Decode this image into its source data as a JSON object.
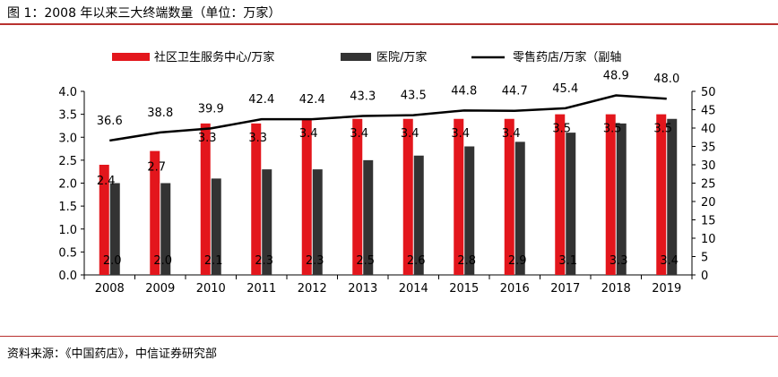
{
  "header": {
    "title": "图 1：2008 年以来三大终端数量（单位：万家）"
  },
  "footer": {
    "source": "资料来源：《中国药店》，中信证券研究部"
  },
  "colors": {
    "red_bar": "#e3161c",
    "dark_bar": "#333333",
    "line": "#000000",
    "rule": "#b8312f"
  },
  "chart_data": {
    "type": "bar",
    "categories": [
      "2008",
      "2009",
      "2010",
      "2011",
      "2012",
      "2013",
      "2014",
      "2015",
      "2016",
      "2017",
      "2018",
      "2019"
    ],
    "series": [
      {
        "name": "社区卫生服务中心/万家",
        "type": "bar",
        "axis": "left",
        "values": [
          2.4,
          2.7,
          3.3,
          3.3,
          3.4,
          3.4,
          3.4,
          3.4,
          3.4,
          3.5,
          3.5,
          3.5
        ],
        "labels": [
          "2.4",
          "2.7",
          "3.3",
          "3.3",
          "3.4",
          "3.4",
          "3.4",
          "3.4",
          "3.4",
          "3.5",
          "3.5",
          "3.5"
        ]
      },
      {
        "name": "医院/万家",
        "type": "bar",
        "axis": "left",
        "values": [
          2.0,
          2.0,
          2.1,
          2.3,
          2.3,
          2.5,
          2.6,
          2.8,
          2.9,
          3.1,
          3.3,
          3.4
        ],
        "labels": [
          "2.0",
          "2.0",
          "2.1",
          "2.3",
          "2.3",
          "2.5",
          "2.6",
          "2.8",
          "2.9",
          "3.1",
          "3.3",
          "3.4"
        ]
      },
      {
        "name": "零售药店/万家（副轴",
        "type": "line",
        "axis": "right",
        "values": [
          36.6,
          38.8,
          39.9,
          42.4,
          42.4,
          43.3,
          43.5,
          44.8,
          44.7,
          45.4,
          48.9,
          48.0
        ],
        "labels": [
          "36.6",
          "38.8",
          "39.9",
          "42.4",
          "42.4",
          "43.3",
          "43.5",
          "44.8",
          "44.7",
          "45.4",
          "48.9",
          "48.0"
        ]
      }
    ],
    "ylim": [
      0,
      4.0
    ],
    "yticks": [
      "0.0",
      "0.5",
      "1.0",
      "1.5",
      "2.0",
      "2.5",
      "3.0",
      "3.5",
      "4.0"
    ],
    "y2lim": [
      0,
      50
    ],
    "y2ticks": [
      "0",
      "5",
      "10",
      "15",
      "20",
      "25",
      "30",
      "35",
      "40",
      "45",
      "50"
    ],
    "legend_position": "top",
    "grid": false
  }
}
